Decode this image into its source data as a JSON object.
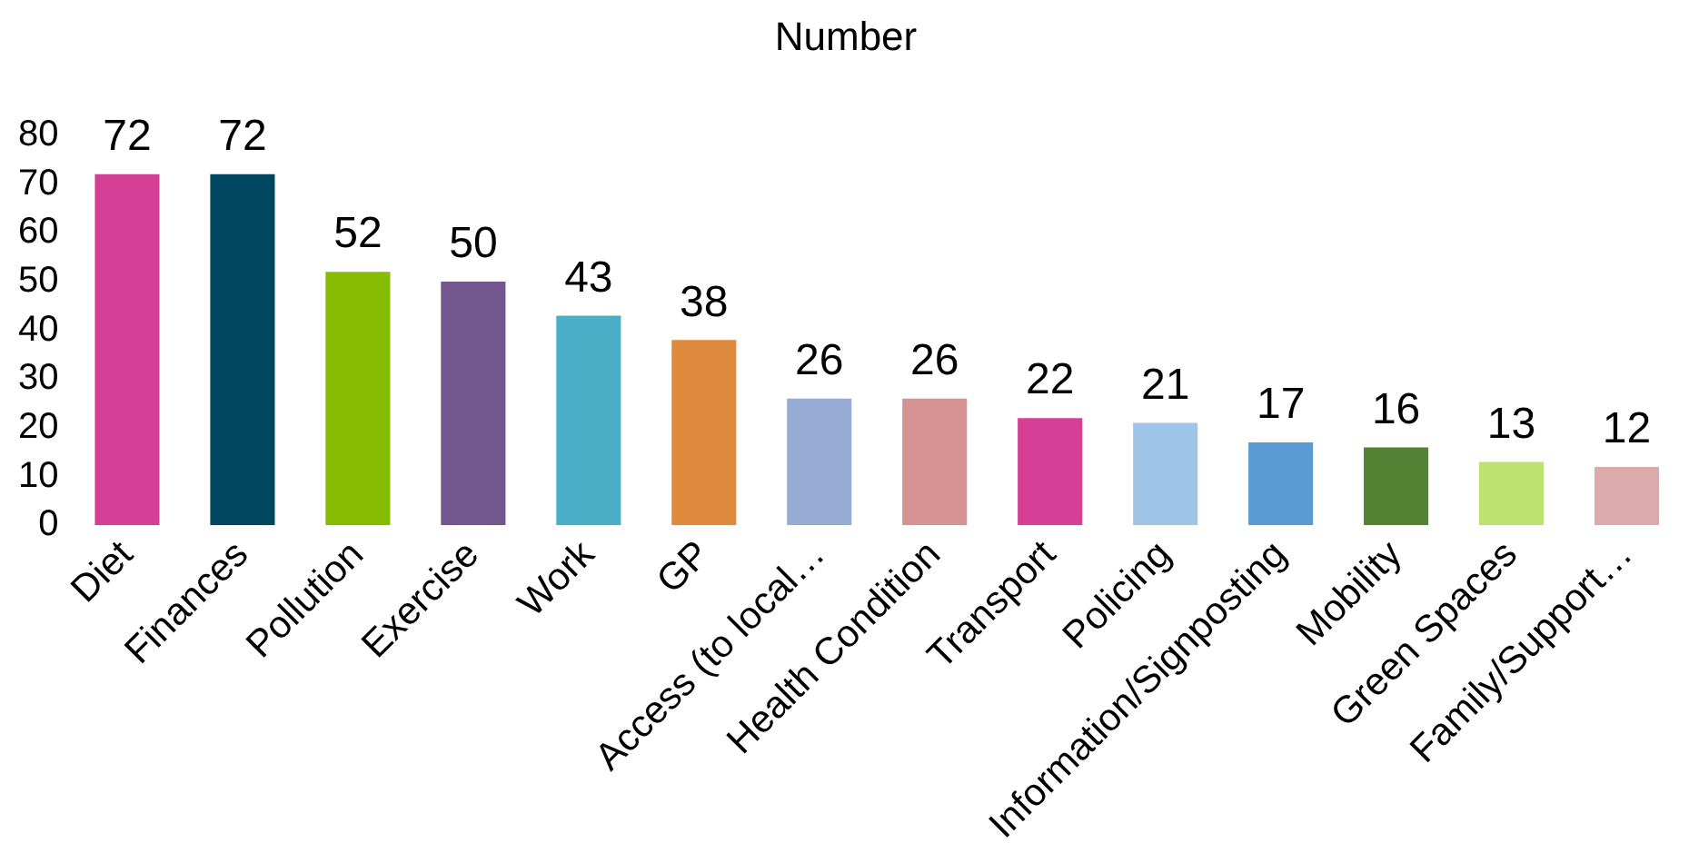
{
  "chart_data": {
    "type": "bar",
    "title": "Number",
    "categories": [
      "Diet",
      "Finances",
      "Pollution",
      "Exercise",
      "Work",
      "GP",
      "Access (to local…",
      "Health Condition",
      "Transport",
      "Policing",
      "Information/Signposting",
      "Mobility",
      "Green Spaces",
      "Family/Support…"
    ],
    "values": [
      72,
      72,
      52,
      50,
      43,
      38,
      26,
      26,
      22,
      21,
      17,
      16,
      13,
      12
    ],
    "colors": [
      "#d63f96",
      "#004660",
      "#86bc00",
      "#74568f",
      "#4aafc6",
      "#e08a3e",
      "#96acd4",
      "#d69394",
      "#d63f96",
      "#9fc5e8",
      "#5b9bd5",
      "#548235",
      "#bde26f",
      "#dcaaaa"
    ],
    "ylim": [
      0,
      80
    ],
    "yticks": [
      0,
      10,
      20,
      30,
      40,
      50,
      60,
      70,
      80
    ],
    "grid": false,
    "legend": false,
    "data_labels": true
  }
}
